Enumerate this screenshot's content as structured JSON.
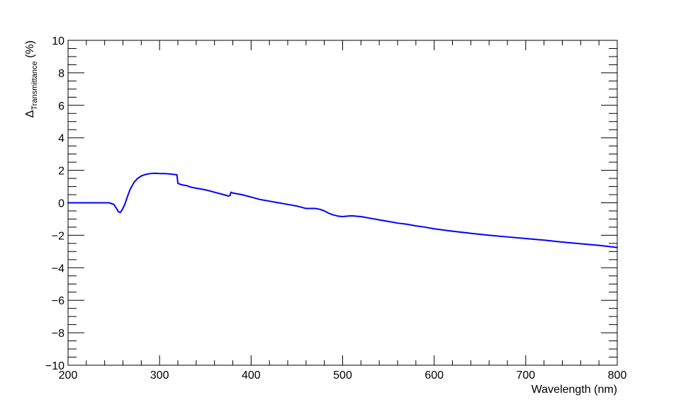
{
  "chart_data": {
    "type": "line",
    "title": "",
    "xlabel": "Wavelength (nm)",
    "ylabel": {
      "prefix": "Δ",
      "subscript": "Transmittance",
      "suffix": " (%)"
    },
    "xlim": [
      200,
      800
    ],
    "ylim": [
      -10,
      10
    ],
    "x_ticks": [
      "200",
      "300",
      "400",
      "500",
      "600",
      "700",
      "800"
    ],
    "y_ticks": [
      "−10",
      "−8",
      "−6",
      "−4",
      "−2",
      "0",
      "2",
      "4",
      "6",
      "8",
      "10"
    ],
    "grid": false,
    "legend": "none",
    "line_color": "#0000ff",
    "series": [
      {
        "x": [
          200,
          245,
          250,
          253,
          255,
          257,
          259,
          262,
          265,
          268,
          272,
          276,
          280,
          285,
          290,
          295,
          300,
          305,
          310,
          315,
          319,
          320,
          322,
          325,
          330,
          335,
          340,
          350,
          360,
          370,
          375,
          377,
          378,
          380,
          385,
          390,
          400,
          410,
          420,
          430,
          440,
          450,
          460,
          470,
          475,
          480,
          485,
          490,
          495,
          500,
          505,
          510,
          520,
          530,
          540,
          550,
          560,
          570,
          580,
          590,
          600,
          620,
          640,
          660,
          680,
          700,
          720,
          740,
          760,
          780,
          800
        ],
        "y": [
          0,
          0,
          -0.1,
          -0.35,
          -0.55,
          -0.6,
          -0.45,
          -0.1,
          0.4,
          0.85,
          1.25,
          1.5,
          1.65,
          1.75,
          1.8,
          1.82,
          1.8,
          1.8,
          1.78,
          1.75,
          1.72,
          1.2,
          1.15,
          1.1,
          1.05,
          0.95,
          0.9,
          0.8,
          0.65,
          0.5,
          0.42,
          0.45,
          0.65,
          0.6,
          0.55,
          0.5,
          0.35,
          0.2,
          0.1,
          0.0,
          -0.1,
          -0.2,
          -0.35,
          -0.35,
          -0.4,
          -0.5,
          -0.65,
          -0.75,
          -0.82,
          -0.85,
          -0.82,
          -0.8,
          -0.85,
          -0.95,
          -1.05,
          -1.15,
          -1.25,
          -1.32,
          -1.42,
          -1.5,
          -1.6,
          -1.75,
          -1.88,
          -2.0,
          -2.1,
          -2.2,
          -2.3,
          -2.42,
          -2.52,
          -2.62,
          -2.75
        ]
      }
    ]
  }
}
